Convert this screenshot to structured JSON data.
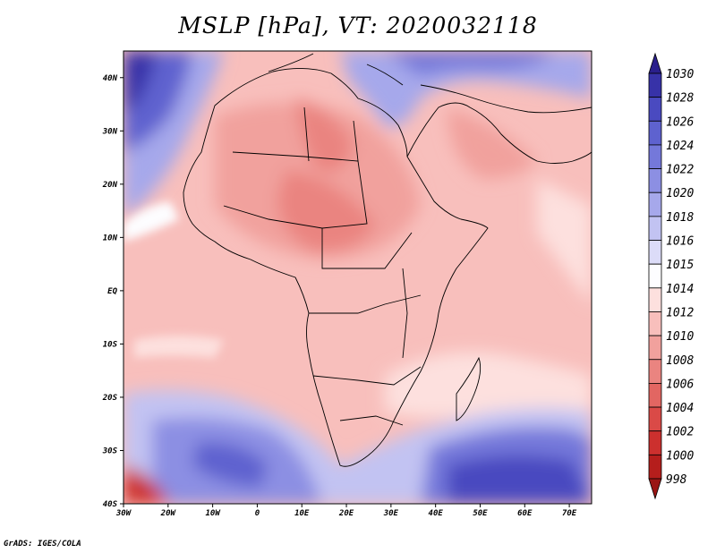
{
  "title": "MSLP [hPa], VT: 2020032118",
  "footer": "GrADS: IGES/COLA",
  "map": {
    "lon_range": [
      -30,
      75
    ],
    "lat_range": [
      -40,
      45
    ],
    "lat_labels": [
      "40N",
      "30N",
      "20N",
      "10N",
      "EQ",
      "10S",
      "20S",
      "30S",
      "40S"
    ],
    "lon_labels": [
      "30W",
      "20W",
      "10W",
      "0",
      "10E",
      "20E",
      "30E",
      "40E",
      "50E",
      "60E",
      "70E"
    ]
  },
  "colorbar": {
    "levels": [
      "1030",
      "1028",
      "1026",
      "1024",
      "1022",
      "1020",
      "1018",
      "1016",
      "1015",
      "1014",
      "1012",
      "1010",
      "1008",
      "1006",
      "1004",
      "1002",
      "1000",
      "998"
    ],
    "colors": [
      "#2a1f8c",
      "#3732a8",
      "#4a4ac0",
      "#5e62cf",
      "#7478da",
      "#8c8fe3",
      "#a6a8eb",
      "#c2c3f2",
      "#dcdcf8",
      "#fdfdff",
      "#fde0de",
      "#f8bfbc",
      "#f1a19d",
      "#ea8480",
      "#e26662",
      "#da4a47",
      "#cc302e",
      "#b51e1c",
      "#9a1514"
    ]
  }
}
